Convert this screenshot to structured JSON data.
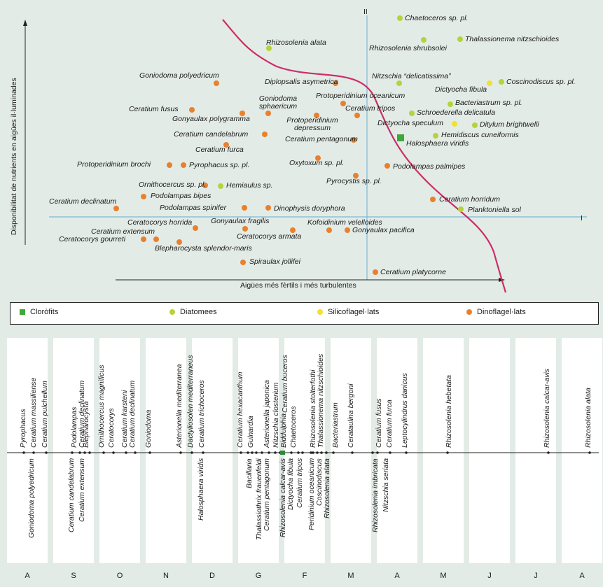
{
  "scatter": {
    "axis_y_label": "Disponibilitat de nutrients en aigües il·luminades",
    "axis_x_label": "Aigües més fèrtils i més turbulentes",
    "axis_roman_II": "II",
    "axis_roman_I": "I",
    "colors": {
      "clorofits": "#3ea83a",
      "diatomees": "#b5d33a",
      "silicoflagelats": "#f2e12e",
      "dinoflagelats": "#e9802d",
      "curve": "#cc2d6a",
      "axis": "#7fb8d4"
    },
    "species": [
      {
        "name": "Chaetoceros sp. pl.",
        "group": "diatomees"
      },
      {
        "name": "Thalassionema nitzschioides",
        "group": "diatomees"
      },
      {
        "name": "Rhizosolenia shrubsolei",
        "group": "diatomees"
      },
      {
        "name": "Rhizosolenia alata",
        "group": "diatomees"
      },
      {
        "name": "Goniodoma polyedricum",
        "group": "dinoflagelats"
      },
      {
        "name": "Diplopsalis asymetrica",
        "group": "dinoflagelats"
      },
      {
        "name": "Nitzschia “delicatissima”",
        "group": "diatomees"
      },
      {
        "name": "Coscinodiscus sp. pl.",
        "group": "diatomees"
      },
      {
        "name": "Dictyocha fibula",
        "group": "silicoflagelats"
      },
      {
        "name": "Protoperidinium oceanicum",
        "group": "dinoflagelats"
      },
      {
        "name": "Bacteriastrum sp. pl.",
        "group": "diatomees"
      },
      {
        "name": "Goniodoma sphaericum",
        "group": "dinoflagelats"
      },
      {
        "name": "Ceratium tripos",
        "group": "dinoflagelats"
      },
      {
        "name": "Schroederella delicatula",
        "group": "diatomees"
      },
      {
        "name": "Ceratium fusus",
        "group": "dinoflagelats"
      },
      {
        "name": "Gonyaulax polygramma",
        "group": "dinoflagelats"
      },
      {
        "name": "Protoperidinium depressum",
        "group": "dinoflagelats"
      },
      {
        "name": "Dictyocha speculum",
        "group": "silicoflagelats"
      },
      {
        "name": "Ditylum brightwelli",
        "group": "diatomees"
      },
      {
        "name": "Ceratium candelabrum",
        "group": "dinoflagelats"
      },
      {
        "name": "Hemidiscus cuneiformis",
        "group": "diatomees"
      },
      {
        "name": "Ceratium pentagonum",
        "group": "dinoflagelats"
      },
      {
        "name": "Halosphaera viridis",
        "group": "clorofits"
      },
      {
        "name": "Ceratium furca",
        "group": "dinoflagelats"
      },
      {
        "name": "Protoperidinium brochi",
        "group": "dinoflagelats"
      },
      {
        "name": "Pyrophacus sp. pl.",
        "group": "dinoflagelats"
      },
      {
        "name": "Oxytoxum sp. pl.",
        "group": "dinoflagelats"
      },
      {
        "name": "Podolampas palmipes",
        "group": "dinoflagelats"
      },
      {
        "name": "Pyrocystis sp. pl.",
        "group": "dinoflagelats"
      },
      {
        "name": "Ornithocercus sp. pl.",
        "group": "dinoflagelats"
      },
      {
        "name": "Hemiaulus sp.",
        "group": "diatomees"
      },
      {
        "name": "Podolampas bipes",
        "group": "dinoflagelats"
      },
      {
        "name": "Ceratium declinatum",
        "group": "dinoflagelats"
      },
      {
        "name": "Podolampas spinifer",
        "group": "dinoflagelats"
      },
      {
        "name": "Dinophysis doryphora",
        "group": "dinoflagelats"
      },
      {
        "name": "Ceratium horridum",
        "group": "dinoflagelats"
      },
      {
        "name": "Planktoniella sol",
        "group": "diatomees"
      },
      {
        "name": "Ceratocorys horrida",
        "group": "dinoflagelats"
      },
      {
        "name": "Gonyaulax fragilis",
        "group": "dinoflagelats"
      },
      {
        "name": "Kofoidinium velelloides",
        "group": "dinoflagelats"
      },
      {
        "name": "Gonyaulax pacifica",
        "group": "dinoflagelats"
      },
      {
        "name": "Ceratium extensum",
        "group": "dinoflagelats"
      },
      {
        "name": "Ceratocorys armata",
        "group": "dinoflagelats"
      },
      {
        "name": "Ceratocorys gourreti",
        "group": "dinoflagelats"
      },
      {
        "name": "Blepharocysta splendor-maris",
        "group": "dinoflagelats"
      },
      {
        "name": "Spiraulax jollifei",
        "group": "dinoflagelats"
      },
      {
        "name": "Ceratium platycorne",
        "group": "dinoflagelats"
      }
    ]
  },
  "legend": {
    "clorofits": "Cloròfits",
    "diatomees": "Diatomees",
    "silicoflagelats": "Silicoflagel·lats",
    "dinoflagelats": "Dinoflagel·lats"
  },
  "calendar": {
    "months": [
      "A",
      "S",
      "O",
      "N",
      "D",
      "G",
      "F",
      "M",
      "A",
      "M",
      "J",
      "J",
      "A"
    ],
    "top": [
      "Pyrophacus",
      "Ceratium massiliense",
      "Ceratium pulchellum",
      "Podolampas",
      "Ceratium declinatum",
      "Blepharocysta",
      "Ornithocercus magnificus",
      "Ceratocorys",
      "Ceratium karsteni",
      "Ceratium declinatum",
      "Goniodoma",
      "Asterionella mediterranea",
      "Dactyliosolen mediterraneus",
      "Ceratium trichoceros",
      "Ceratium hexacanthum",
      "Gulnardia",
      "Asterionella japonica",
      "Nitzschia closterium",
      "Biddulphia",
      "Ceratium buceros",
      "Chaetoceros",
      "Rhizosolenia stolterfothi",
      "Thalassionema nitzschioides",
      "Bacteriastrum",
      "Cerataulina bergoni",
      "Ceratium fusus",
      "Ceratium furca",
      "Leptocylindrus danicus",
      "Rhizosolenia hebetata",
      "Rhizosolenia calcar-avis",
      "Rhizosolenia alata"
    ],
    "bottom": [
      "Goniodoma polyedricum",
      "Ceratium candelabrum",
      "Ceratium extensum",
      "Halosphaera viridis",
      "Bacillaria",
      "Thalassiothrix frauenfeldi",
      "Ceratium pentagonum",
      "Rhizosolenia calcar-avis",
      "Dictyocha fibula",
      "Ceratium tripos",
      "Peridinium oceanicum",
      "Coscinodiscus",
      "Rhizosolenia alata",
      "Rhizosolenia imbricata",
      "Nitzschia seriata"
    ]
  }
}
